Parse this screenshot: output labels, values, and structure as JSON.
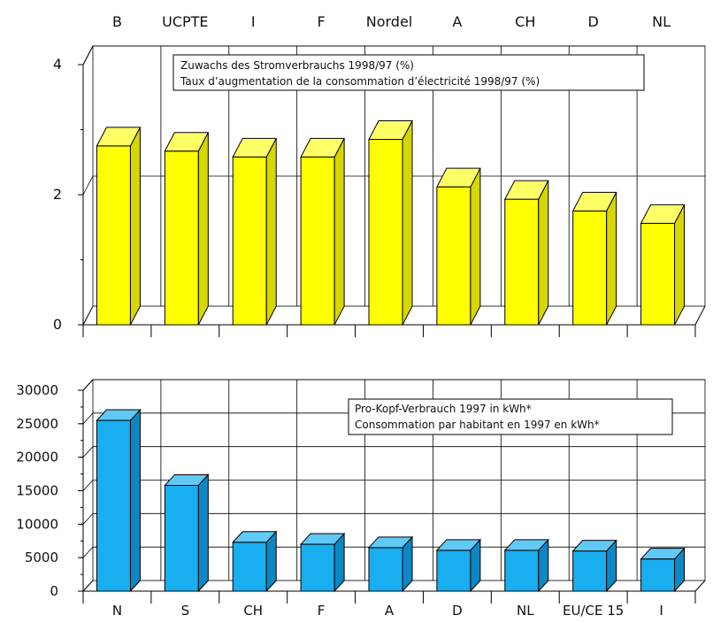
{
  "chart_data": [
    {
      "type": "bar",
      "categories": [
        "B",
        "UCPTE",
        "I",
        "F",
        "Nordel",
        "A",
        "CH",
        "D",
        "NL"
      ],
      "values": [
        2.75,
        2.67,
        2.58,
        2.58,
        2.85,
        2.12,
        1.93,
        1.75,
        1.56
      ],
      "ylim": [
        0,
        4
      ],
      "yticks": [
        "0",
        "2",
        "4"
      ],
      "legend": [
        "Zuwachs des Stromverbrauchs 1998/97 (%)",
        "Taux d’augmentation de la consommation d’électricité 1998/97 (%)"
      ],
      "colors": {
        "front": "#ffff00",
        "top": "#ffff66",
        "side": "#d6d600"
      }
    },
    {
      "type": "bar",
      "categories": [
        "N",
        "S",
        "CH",
        "F",
        "A",
        "D",
        "NL",
        "EU/CE 15",
        "I"
      ],
      "values": [
        25500,
        15800,
        7300,
        7000,
        6500,
        6100,
        6100,
        6000,
        4800
      ],
      "ylim": [
        0,
        30000
      ],
      "yticks": [
        "0",
        "5000",
        "10000",
        "15000",
        "20000",
        "25000",
        "30000"
      ],
      "legend": [
        "Pro-Kopf-Verbrauch 1997 in kWh*",
        "Consommation par habitant en 1997 en kWh*"
      ],
      "colors": {
        "front": "#19aef0",
        "top": "#60c9f6",
        "side": "#0d87c4"
      }
    }
  ]
}
